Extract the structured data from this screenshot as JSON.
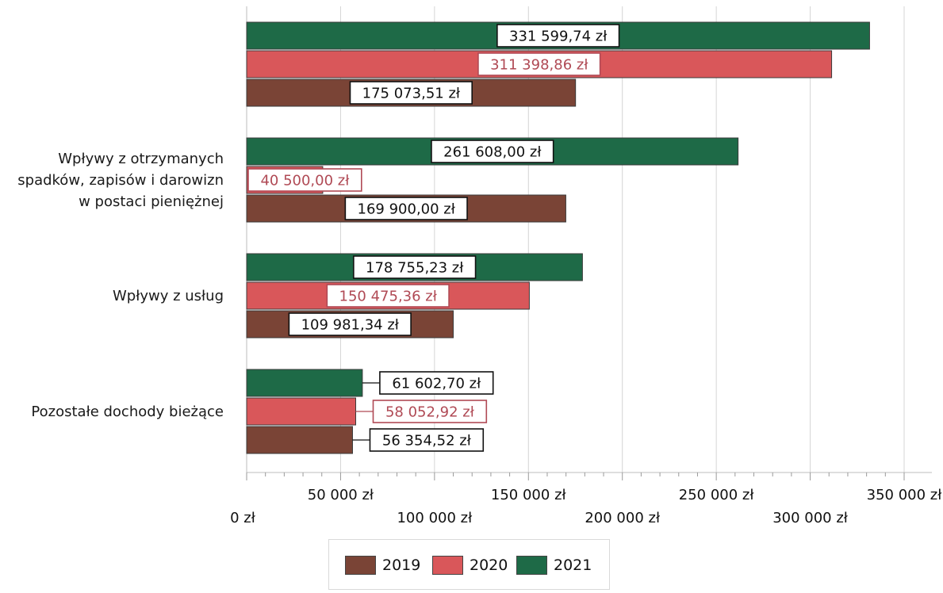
{
  "chart_data": {
    "type": "bar",
    "orientation": "horizontal",
    "categories": [
      "",
      "Wpływy z otrzymanych spadków, zapisów i darowizn w postaci pieniężnej",
      "Wpływy z usług",
      "Pozostałe dochody bieżące"
    ],
    "category_lines": [
      [],
      [
        "Wpływy z otrzymanych",
        "spadków, zapisów i darowizn",
        "w postaci pieniężnej"
      ],
      [
        "Wpływy z usług"
      ],
      [
        "Pozostałe dochody bieżące"
      ]
    ],
    "series": [
      {
        "name": "2021",
        "color": "#1e6a47",
        "values": [
          331599.74,
          261608.0,
          178755.23,
          61602.7
        ],
        "labels": [
          "331 599,74 zł",
          "261 608,00 zł",
          "178 755,23 zł",
          "61 602,70 zł"
        ]
      },
      {
        "name": "2020",
        "color": "#d9575a",
        "values": [
          311398.86,
          40500.0,
          150475.36,
          58052.92
        ],
        "labels": [
          "311 398,86 zł",
          "40 500,00 zł",
          "150 475,36 zł",
          "58 052,92 zł"
        ]
      },
      {
        "name": "2019",
        "color": "#7a4436",
        "values": [
          175073.51,
          169900.0,
          109981.34,
          56354.52
        ],
        "labels": [
          "175 073,51 zł",
          "169 900,00 zł",
          "109 981,34 zł",
          "56 354,52 zł"
        ]
      }
    ],
    "xlim": [
      0,
      350000
    ],
    "xticks": [
      0,
      50000,
      100000,
      150000,
      200000,
      250000,
      300000,
      350000
    ],
    "xtick_labels": [
      "0 zł",
      "50 000 zł",
      "100 000 zł",
      "150 000 zł",
      "200 000 zł",
      "250 000 zł",
      "300 000 zł",
      "350 000 zł"
    ],
    "legend": {
      "position": "bottom",
      "order": [
        "2019",
        "2020",
        "2021"
      ]
    },
    "label_colors": {
      "2021": "#111111",
      "2020": "#b04a55",
      "2019": "#111111"
    },
    "label_borders": {
      "2021": "#111111",
      "2020": "#b04a55",
      "2019": "#111111"
    },
    "grid": true,
    "title": "",
    "xlabel": "",
    "ylabel": ""
  }
}
